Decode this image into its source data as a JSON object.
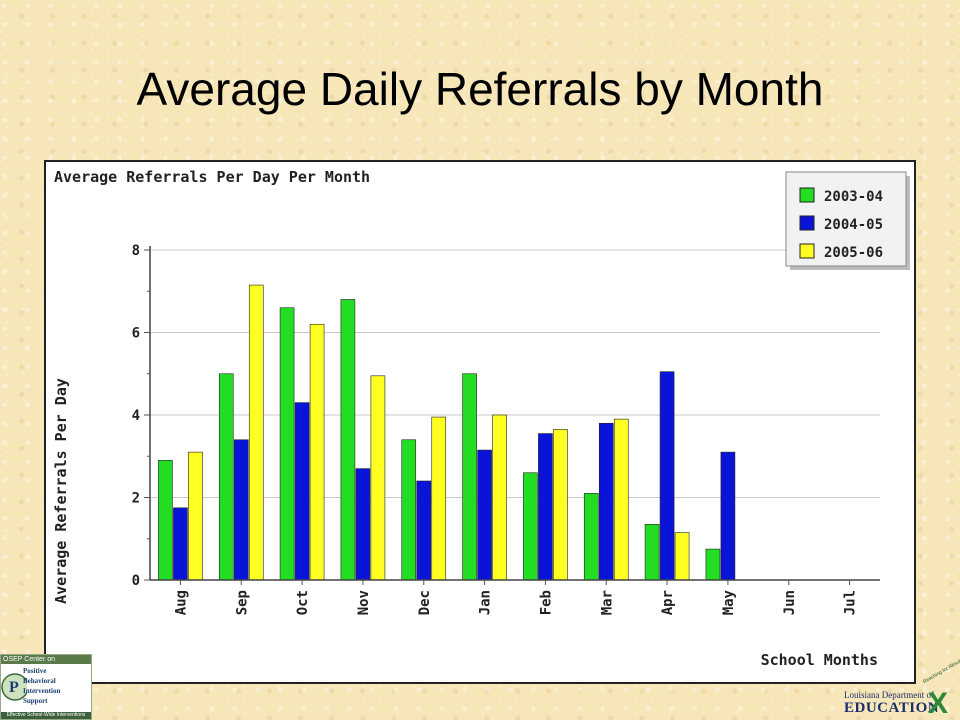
{
  "slide": {
    "title": "Average Daily Referrals by Month"
  },
  "chart_data": {
    "type": "bar",
    "title": "Average Referrals Per Day Per Month",
    "xlabel": "School Months",
    "ylabel": "Average Referrals Per Day",
    "categories": [
      "Aug",
      "Sep",
      "Oct",
      "Nov",
      "Dec",
      "Jan",
      "Feb",
      "Mar",
      "Apr",
      "May",
      "Jun",
      "Jul"
    ],
    "series": [
      {
        "name": "2003-04",
        "color": "#22dd22",
        "values": [
          2.9,
          5.0,
          6.6,
          6.8,
          3.4,
          5.0,
          2.6,
          2.1,
          1.35,
          0.75,
          null,
          null
        ]
      },
      {
        "name": "2004-05",
        "color": "#0a14d8",
        "values": [
          1.75,
          3.4,
          4.3,
          2.7,
          2.4,
          3.15,
          3.55,
          3.8,
          5.05,
          3.1,
          null,
          null
        ]
      },
      {
        "name": "2005-06",
        "color": "#ffff22",
        "values": [
          3.1,
          7.15,
          6.2,
          4.95,
          3.95,
          4.0,
          3.65,
          3.9,
          1.15,
          null,
          null,
          null
        ]
      }
    ],
    "ylim": [
      0,
      8
    ],
    "yticks": [
      0,
      2,
      4,
      6,
      8
    ],
    "grid": true,
    "legend_position": "top-right"
  },
  "logos": {
    "left": {
      "top_text": "OSEP Center on",
      "letters": [
        "P",
        "B",
        "I",
        "S"
      ],
      "words": [
        "Positive",
        "Behavioral",
        "Intervention",
        "&",
        "Support"
      ],
      "bottom_text": "Effective School-Wide Interventions"
    },
    "right": {
      "small_text": "Louisiana Department of",
      "big_text": "EDUCATION",
      "mark": "X",
      "tagline": "Reaching for Results"
    }
  }
}
